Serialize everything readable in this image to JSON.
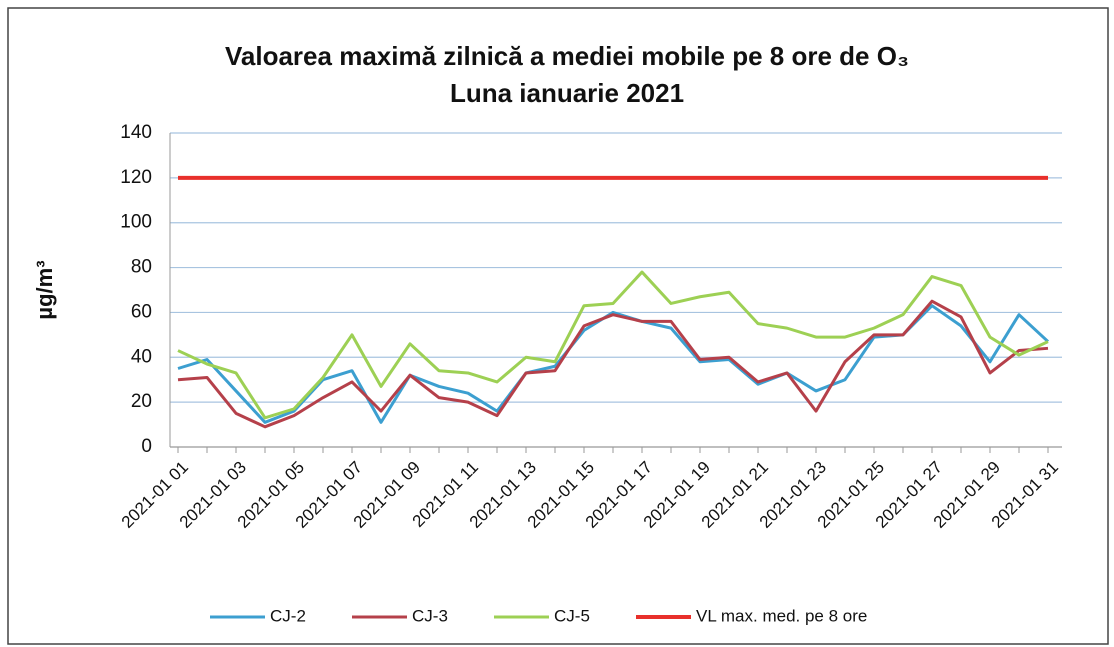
{
  "chart_data": {
    "type": "line",
    "title": "Valoarea maximă zilnică a mediei mobile pe 8 ore de O₃",
    "subtitle": "Luna ianuarie 2021",
    "y_label": "µg/m³",
    "categories": [
      "2021-01 01",
      null,
      "2021-01 03",
      null,
      "2021-01 05",
      null,
      "2021-01 07",
      null,
      "2021-01 09",
      null,
      "2021-01 11",
      null,
      "2021-01 13",
      null,
      "2021-01 15",
      null,
      "2021-01 17",
      null,
      "2021-01 19",
      null,
      "2021-01 21",
      null,
      "2021-01 23",
      null,
      "2021-01 25",
      null,
      "2021-01 27",
      null,
      "2021-01 29",
      null,
      "2021-01 31"
    ],
    "series": [
      {
        "name": "CJ-2",
        "color": "#3c9fd0",
        "values": [
          35,
          39,
          25,
          11,
          16,
          30,
          34,
          11,
          32,
          27,
          24,
          16,
          33,
          36,
          52,
          60,
          56,
          53,
          38,
          39,
          28,
          33,
          25,
          30,
          49,
          50,
          63,
          54,
          38,
          59,
          47
        ]
      },
      {
        "name": "CJ-3",
        "color": "#b5404a",
        "values": [
          30,
          31,
          15,
          9,
          14,
          22,
          29,
          16,
          32,
          22,
          20,
          14,
          33,
          34,
          54,
          59,
          56,
          56,
          39,
          40,
          29,
          33,
          16,
          38,
          50,
          50,
          65,
          58,
          33,
          43,
          44
        ]
      },
      {
        "name": "CJ-5",
        "color": "#9dd054",
        "values": [
          43,
          37,
          33,
          13,
          17,
          31,
          50,
          27,
          46,
          34,
          33,
          29,
          40,
          38,
          63,
          64,
          78,
          64,
          67,
          69,
          55,
          53,
          49,
          49,
          53,
          59,
          76,
          72,
          49,
          41,
          47
        ]
      },
      {
        "name": "VL max. med. pe 8 ore",
        "color": "#e8302b",
        "values": [
          120,
          120,
          120,
          120,
          120,
          120,
          120,
          120,
          120,
          120,
          120,
          120,
          120,
          120,
          120,
          120,
          120,
          120,
          120,
          120,
          120,
          120,
          120,
          120,
          120,
          120,
          120,
          120,
          120,
          120,
          120
        ]
      }
    ],
    "ylim": [
      0,
      140
    ],
    "yticks": [
      0,
      20,
      40,
      60,
      80,
      100,
      120,
      140
    ],
    "grid": true
  }
}
